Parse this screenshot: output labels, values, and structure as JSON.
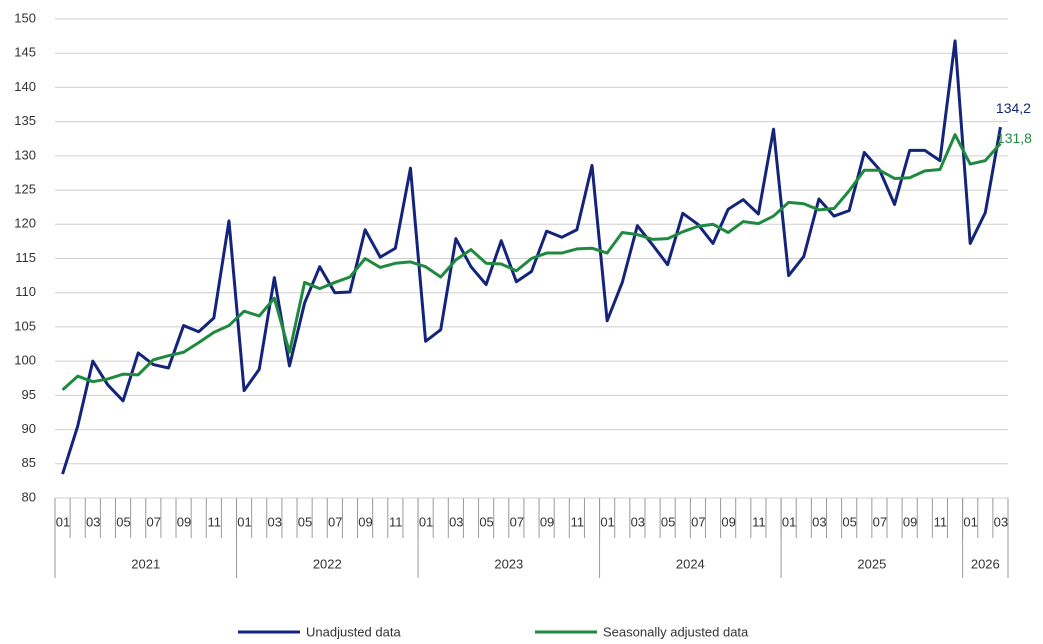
{
  "chart_data": {
    "type": "line",
    "categories": [
      "01",
      null,
      "03",
      null,
      "05",
      null,
      "07",
      null,
      "09",
      null,
      "11",
      null,
      "01",
      null,
      "03",
      null,
      "05",
      null,
      "07",
      null,
      "09",
      null,
      "11",
      null,
      "01",
      null,
      "03",
      null,
      "05",
      null,
      "07",
      null,
      "09",
      null,
      "11",
      null,
      "01",
      null,
      "03",
      null,
      "05",
      null,
      "07",
      null,
      "09",
      null,
      "11",
      null,
      "01",
      null,
      "03",
      null,
      "05",
      null,
      "07",
      null,
      "09",
      null,
      "11",
      null,
      "01",
      null,
      "03"
    ],
    "x_groups": [
      "2021",
      "2022",
      "2023",
      "2024",
      "2025",
      "2026"
    ],
    "ylim": [
      80,
      150
    ],
    "yticks": [
      80,
      85,
      90,
      95,
      100,
      105,
      110,
      115,
      120,
      125,
      130,
      135,
      140,
      145,
      150
    ],
    "grid": true,
    "series": [
      {
        "name": "Unadjusted data",
        "color": "#14247a",
        "values": [
          83.5,
          90.5,
          100,
          96.5,
          94.2,
          101.2,
          99.5,
          99,
          105.2,
          104.3,
          106.3,
          120.5,
          95.7,
          98.8,
          112.2,
          99.3,
          108.5,
          113.8,
          110,
          110.1,
          119.2,
          115.2,
          116.5,
          128.2,
          102.9,
          104.6,
          117.9,
          113.8,
          111.2,
          117.6,
          111.6,
          113.1,
          119,
          118.1,
          119.2,
          128.6,
          105.9,
          111.5,
          119.8,
          117,
          114.1,
          121.6,
          120,
          117.2,
          122.2,
          123.6,
          121.5,
          133.9,
          112.5,
          115.3,
          123.7,
          121.2,
          122,
          130.5,
          128,
          122.9,
          130.8,
          130.8,
          129.3,
          146.8,
          117.2,
          121.7,
          134.2
        ],
        "value_labels": [
          null,
          null,
          null,
          null,
          null,
          null,
          null,
          null,
          null,
          null,
          null,
          null,
          null,
          null,
          null,
          null,
          null,
          null,
          null,
          null,
          null,
          null,
          null,
          null,
          null,
          null,
          null,
          null,
          null,
          null,
          null,
          null,
          null,
          null,
          null,
          null,
          null,
          null,
          null,
          null,
          null,
          null,
          null,
          null,
          null,
          null,
          null,
          null,
          null,
          null,
          null,
          null,
          null,
          null,
          null,
          null,
          null,
          null,
          null,
          null,
          null,
          null,
          "134,2"
        ]
      },
      {
        "name": "Seasonally adjusted data",
        "color": "#1f8a3f",
        "values": [
          95.8,
          97.8,
          97,
          97.4,
          98.1,
          98,
          100.2,
          100.8,
          101.3,
          102.7,
          104.2,
          105.2,
          107.3,
          106.6,
          109.2,
          101.3,
          111.5,
          110.6,
          111.5,
          112.3,
          115,
          113.7,
          114.3,
          114.5,
          113.8,
          112.3,
          114.8,
          116.3,
          114.3,
          114.2,
          113.2,
          115,
          115.8,
          115.8,
          116.4,
          116.5,
          115.8,
          118.8,
          118.5,
          117.8,
          117.9,
          118.9,
          119.7,
          120,
          118.8,
          120.4,
          120.1,
          121.2,
          123.2,
          123,
          122.1,
          122.3,
          124.9,
          127.9,
          127.9,
          126.7,
          126.8,
          127.8,
          128,
          133.1,
          128.8,
          129.3,
          131.8
        ],
        "value_labels": [
          null,
          null,
          null,
          null,
          null,
          null,
          null,
          null,
          null,
          null,
          null,
          null,
          null,
          null,
          null,
          null,
          null,
          null,
          null,
          null,
          null,
          null,
          null,
          null,
          null,
          null,
          null,
          null,
          null,
          null,
          null,
          null,
          null,
          null,
          null,
          null,
          null,
          null,
          null,
          null,
          null,
          null,
          null,
          null,
          null,
          null,
          null,
          null,
          null,
          null,
          null,
          null,
          null,
          null,
          null,
          null,
          null,
          null,
          null,
          null,
          null,
          null,
          "131,8"
        ]
      }
    ]
  }
}
